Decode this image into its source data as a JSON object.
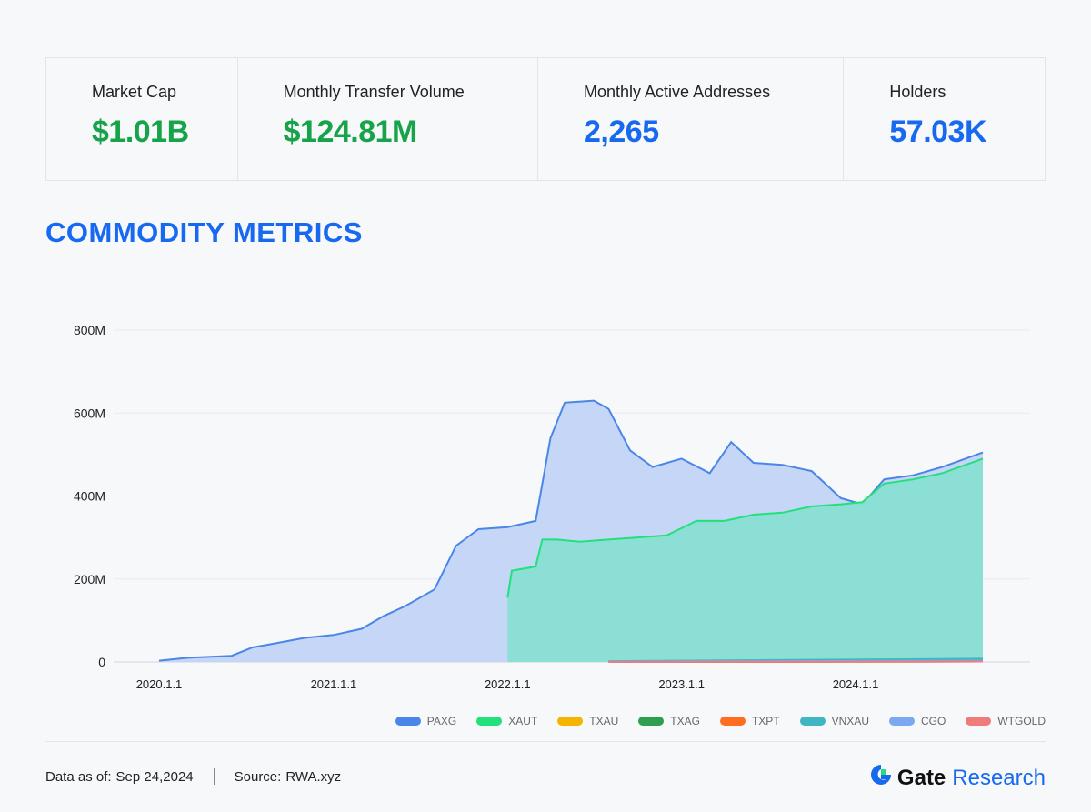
{
  "stats": [
    {
      "label": "Market Cap",
      "value": "$1.01B",
      "color": "green"
    },
    {
      "label": "Monthly Transfer Volume",
      "value": "$124.81M",
      "color": "green"
    },
    {
      "label": "Monthly Active Addresses",
      "value": "2,265",
      "color": "blue"
    },
    {
      "label": "Holders",
      "value": "57.03K",
      "color": "blue"
    }
  ],
  "section_title": "COMMODITY METRICS",
  "footer": {
    "date_label": "Data as of:",
    "date_value": "Sep 24,2024",
    "source_label": "Source:",
    "source_value": "RWA.xyz"
  },
  "brand": {
    "name": "Gate",
    "sub": "Research",
    "icon": "gate-logo-icon"
  },
  "colors": {
    "accent_blue": "#1769f0",
    "accent_green": "#16a34a"
  },
  "chart_data": {
    "type": "area",
    "stacked": true,
    "x_range": [
      "2020-01-01",
      "2024-09-24"
    ],
    "xticks": [
      {
        "date": "2020-01-01",
        "label": "2020.1.1"
      },
      {
        "date": "2021-01-01",
        "label": "2021.1.1"
      },
      {
        "date": "2022-01-01",
        "label": "2022.1.1"
      },
      {
        "date": "2023-01-01",
        "label": "2023.1.1"
      },
      {
        "date": "2024-01-01",
        "label": "2024.1.1"
      }
    ],
    "yticks": [
      {
        "value": 0,
        "label": "0"
      },
      {
        "value": 200000000,
        "label": "200M"
      },
      {
        "value": 400000000,
        "label": "400M"
      },
      {
        "value": 600000000,
        "label": "600M"
      },
      {
        "value": 800000000,
        "label": "800M"
      }
    ],
    "ylim": [
      0,
      800000000
    ],
    "grid": true,
    "legend_position": "bottom-right",
    "series": [
      {
        "name": "PAXG",
        "color": "#4a86e8",
        "fill": "#c2d4f5",
        "points": [
          [
            "2020-01-01",
            3
          ],
          [
            "2020-03-01",
            10
          ],
          [
            "2020-06-01",
            15
          ],
          [
            "2020-07-15",
            35
          ],
          [
            "2020-09-01",
            45
          ],
          [
            "2020-11-01",
            58
          ],
          [
            "2021-01-01",
            65
          ],
          [
            "2021-03-01",
            80
          ],
          [
            "2021-04-15",
            110
          ],
          [
            "2021-06-01",
            135
          ],
          [
            "2021-08-01",
            175
          ],
          [
            "2021-09-15",
            280
          ],
          [
            "2021-11-01",
            320
          ],
          [
            "2022-01-01",
            325
          ],
          [
            "2022-03-01",
            340
          ],
          [
            "2022-04-01",
            540
          ],
          [
            "2022-05-01",
            625
          ],
          [
            "2022-07-01",
            630
          ],
          [
            "2022-08-01",
            610
          ],
          [
            "2022-09-15",
            510
          ],
          [
            "2022-11-01",
            470
          ],
          [
            "2023-01-01",
            490
          ],
          [
            "2023-03-01",
            455
          ],
          [
            "2023-04-15",
            530
          ],
          [
            "2023-06-01",
            480
          ],
          [
            "2023-08-01",
            475
          ],
          [
            "2023-10-01",
            460
          ],
          [
            "2023-12-01",
            395
          ],
          [
            "2024-01-15",
            380
          ],
          [
            "2024-03-01",
            440
          ],
          [
            "2024-05-01",
            450
          ],
          [
            "2024-07-01",
            470
          ],
          [
            "2024-09-24",
            505
          ]
        ]
      },
      {
        "name": "XAUT",
        "color": "#22e07a",
        "fill": "#89dfd3",
        "points": [
          [
            "2022-01-01",
            155
          ],
          [
            "2022-01-10",
            220
          ],
          [
            "2022-03-01",
            230
          ],
          [
            "2022-03-15",
            295
          ],
          [
            "2022-04-15",
            295
          ],
          [
            "2022-06-01",
            290
          ],
          [
            "2022-08-01",
            295
          ],
          [
            "2022-10-01",
            300
          ],
          [
            "2022-12-01",
            305
          ],
          [
            "2023-02-01",
            340
          ],
          [
            "2023-04-01",
            340
          ],
          [
            "2023-06-01",
            355
          ],
          [
            "2023-08-01",
            360
          ],
          [
            "2023-10-01",
            375
          ],
          [
            "2023-12-01",
            380
          ],
          [
            "2024-01-15",
            385
          ],
          [
            "2024-03-01",
            430
          ],
          [
            "2024-05-01",
            440
          ],
          [
            "2024-07-01",
            455
          ],
          [
            "2024-09-24",
            490
          ]
        ]
      },
      {
        "name": "TXAU",
        "color": "#f5b400",
        "fill": "#f5b400",
        "points": [
          [
            "2022-08-01",
            0
          ],
          [
            "2024-09-24",
            2
          ]
        ]
      },
      {
        "name": "TXAG",
        "color": "#2e9e4f",
        "fill": "#2e9e4f",
        "points": [
          [
            "2022-08-01",
            0
          ],
          [
            "2024-09-24",
            1
          ]
        ]
      },
      {
        "name": "TXPT",
        "color": "#ff6d1f",
        "fill": "#ff6d1f",
        "points": [
          [
            "2022-08-01",
            0
          ],
          [
            "2024-09-24",
            1
          ]
        ]
      },
      {
        "name": "VNXAU",
        "color": "#3fb6c1",
        "fill": "#3fb6c1",
        "points": [
          [
            "2022-08-01",
            2
          ],
          [
            "2024-09-24",
            8
          ]
        ]
      },
      {
        "name": "CGO",
        "color": "#7ba9f0",
        "fill": "#7ba9f0",
        "points": [
          [
            "2022-08-01",
            1
          ],
          [
            "2024-09-24",
            3
          ]
        ]
      },
      {
        "name": "WTGOLD",
        "color": "#ef7b7b",
        "fill": "#ef7b7b",
        "points": [
          [
            "2022-08-01",
            0
          ],
          [
            "2024-09-24",
            1
          ]
        ]
      }
    ],
    "y_unit_multiplier": 1000000
  }
}
